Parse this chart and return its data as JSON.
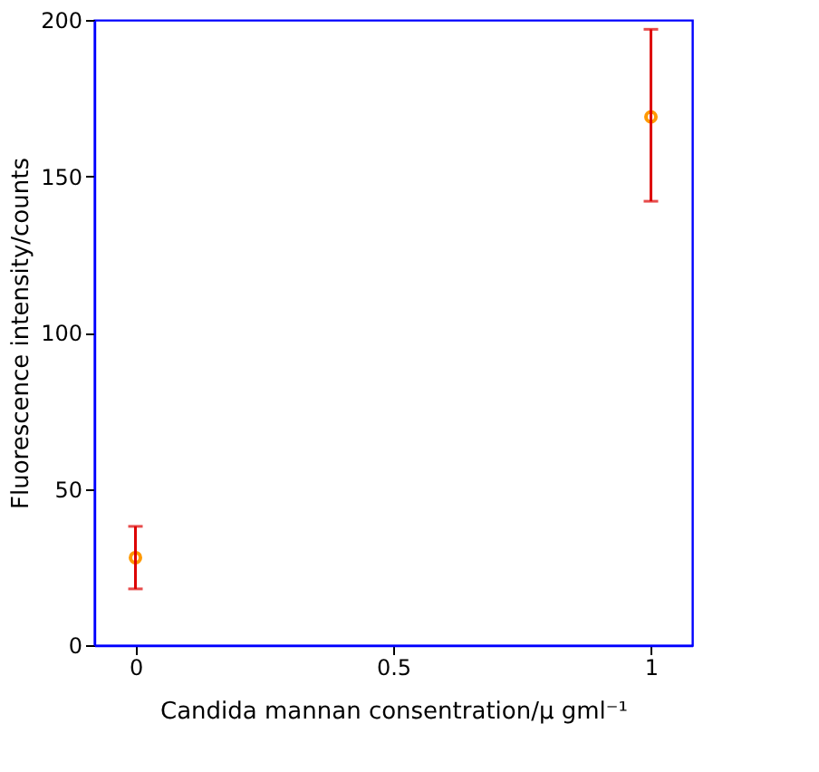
{
  "chart_data": {
    "type": "scatter",
    "xlabel": "Candida mannan consentration/μ gml⁻¹",
    "ylabel": "Fluorescence intensity/counts",
    "x": [
      0,
      1
    ],
    "series": [
      {
        "color": "#ff9900",
        "values": [
          28,
          169
        ],
        "errors": [
          [
            18,
            38
          ],
          [
            142,
            197
          ]
        ]
      }
    ],
    "xlim": [
      -0.08,
      1.08
    ],
    "xticks": [
      0,
      0.5,
      1
    ],
    "ylim": [
      0,
      200
    ],
    "yticks": [
      0,
      50,
      100,
      150,
      200
    ],
    "grid": false,
    "marker": "circle"
  }
}
